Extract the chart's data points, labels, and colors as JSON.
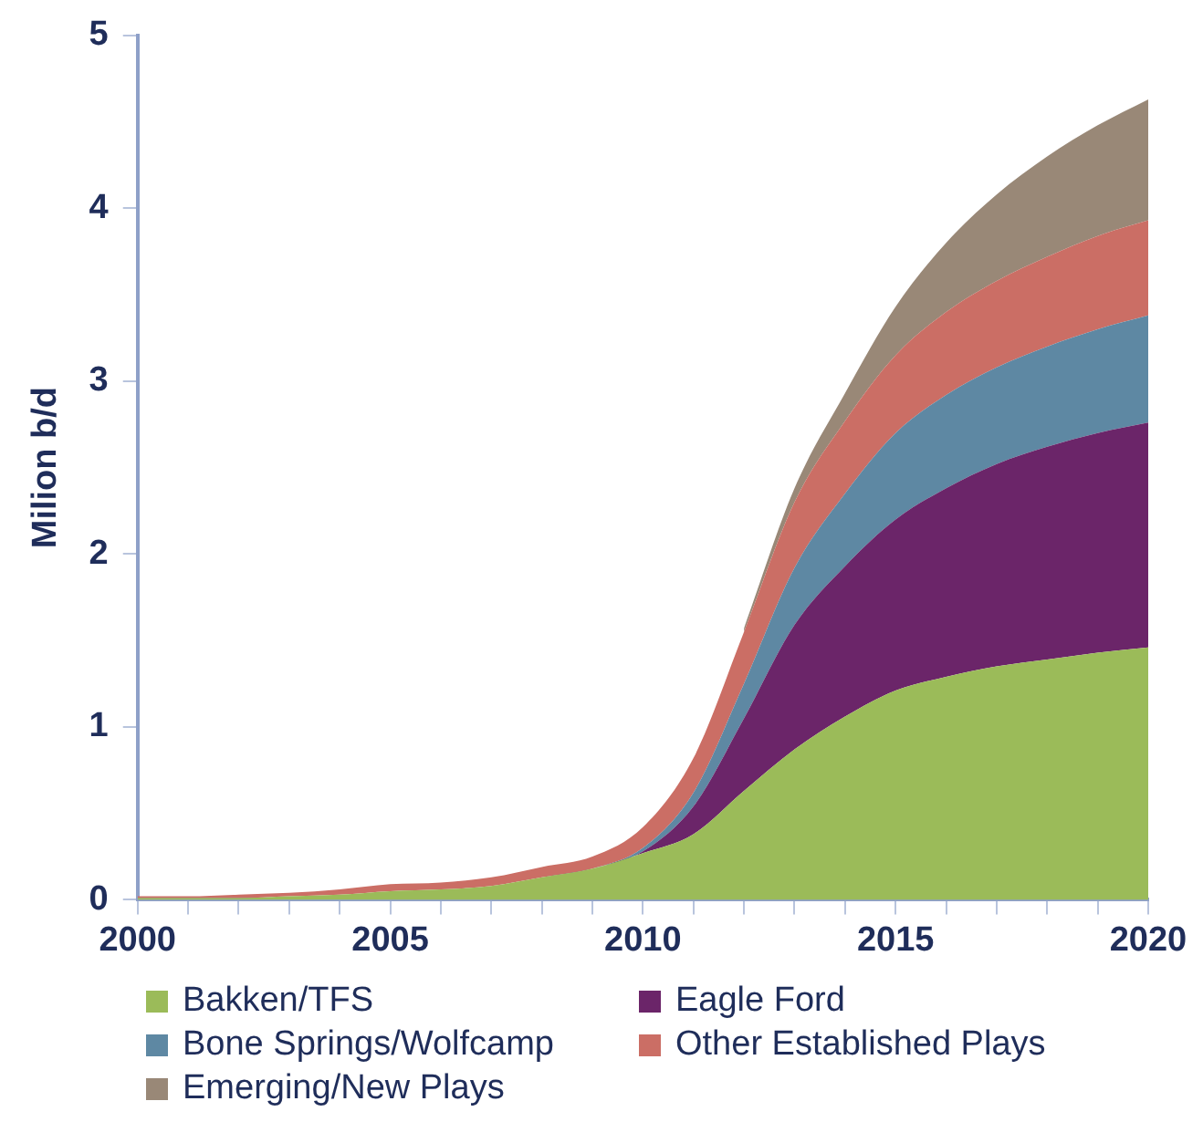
{
  "chart_data": {
    "type": "area",
    "stacked": true,
    "ylabel": "Milion b/d",
    "x": [
      2000,
      2001,
      2002,
      2003,
      2004,
      2005,
      2006,
      2007,
      2008,
      2009,
      2010,
      2011,
      2012,
      2013,
      2014,
      2015,
      2016,
      2017,
      2018,
      2019,
      2020
    ],
    "xlim": [
      2000,
      2020
    ],
    "xticks": [
      2000,
      {
        "value": 2001,
        "label": null
      },
      {
        "value": 2002,
        "label": null
      },
      {
        "value": 2003,
        "label": null
      },
      {
        "value": 2004,
        "label": null
      },
      2005,
      {
        "value": 2006,
        "label": null
      },
      {
        "value": 2007,
        "label": null
      },
      {
        "value": 2008,
        "label": null
      },
      {
        "value": 2009,
        "label": null
      },
      2010,
      {
        "value": 2011,
        "label": null
      },
      {
        "value": 2012,
        "label": null
      },
      {
        "value": 2013,
        "label": null
      },
      {
        "value": 2014,
        "label": null
      },
      2015,
      {
        "value": 2016,
        "label": null
      },
      {
        "value": 2017,
        "label": null
      },
      {
        "value": 2018,
        "label": null
      },
      {
        "value": 2019,
        "label": null
      },
      2020
    ],
    "ylim": [
      0,
      5
    ],
    "yticks": [
      0,
      1,
      2,
      3,
      4,
      5
    ],
    "grid": false,
    "legend": "bottom",
    "series": [
      {
        "name": "Bakken/TFS",
        "color": "#9bbb59",
        "values": [
          0.01,
          0.01,
          0.01,
          0.02,
          0.03,
          0.05,
          0.06,
          0.08,
          0.13,
          0.18,
          0.27,
          0.38,
          0.63,
          0.87,
          1.06,
          1.21,
          1.29,
          1.35,
          1.39,
          1.43,
          1.46
        ]
      },
      {
        "name": "Eagle Ford",
        "color": "#6b2569",
        "values": [
          0,
          0,
          0,
          0,
          0,
          0,
          0,
          0,
          0,
          0,
          0.01,
          0.16,
          0.42,
          0.72,
          0.87,
          0.99,
          1.09,
          1.17,
          1.23,
          1.27,
          1.3
        ]
      },
      {
        "name": "Bone Springs/Wolfcamp",
        "color": "#5e88a3",
        "values": [
          0,
          0,
          0,
          0,
          0,
          0,
          0,
          0,
          0,
          0,
          0.02,
          0.08,
          0.2,
          0.33,
          0.42,
          0.5,
          0.54,
          0.56,
          0.58,
          0.6,
          0.62
        ]
      },
      {
        "name": "Other Established Plays",
        "color": "#cb6e65",
        "values": [
          0.01,
          0.01,
          0.02,
          0.02,
          0.03,
          0.04,
          0.04,
          0.05,
          0.06,
          0.07,
          0.12,
          0.2,
          0.3,
          0.38,
          0.42,
          0.45,
          0.48,
          0.5,
          0.52,
          0.54,
          0.55
        ]
      },
      {
        "name": "Emerging/New Plays",
        "color": "#998877",
        "values": [
          null,
          null,
          null,
          null,
          null,
          null,
          null,
          null,
          null,
          null,
          null,
          null,
          0.02,
          0.08,
          0.16,
          0.28,
          0.4,
          0.5,
          0.58,
          0.64,
          0.7
        ]
      }
    ]
  }
}
